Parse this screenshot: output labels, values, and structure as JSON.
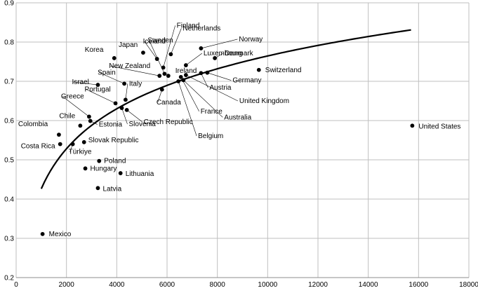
{
  "chart_data": {
    "type": "scatter",
    "title": "",
    "xlabel": "",
    "ylabel": "",
    "xlim": [
      0,
      18000
    ],
    "ylim": [
      0.2,
      0.9
    ],
    "x_ticks": [
      0,
      2000,
      4000,
      6000,
      8000,
      10000,
      12000,
      14000,
      16000,
      18000
    ],
    "y_ticks": [
      0.2,
      0.3,
      0.4,
      0.5,
      0.6,
      0.7,
      0.8,
      0.9
    ],
    "x_tick_labels": [
      "0",
      "2000",
      "4000",
      "6000",
      "8000",
      "10000",
      "12000",
      "14000",
      "16000",
      "18000"
    ],
    "y_tick_labels": [
      "0.2",
      "0.3",
      "0.4",
      "0.5",
      "0.6",
      "0.7",
      "0.8",
      "0.9"
    ],
    "grid": true,
    "legend": "none",
    "trendline": {
      "type": "logarithmic",
      "x_range": [
        1000,
        15700
      ]
    },
    "points": [
      {
        "label": "Mexico",
        "x": 1050,
        "y": 0.311
      },
      {
        "label": "Colombia",
        "x": 1700,
        "y": 0.564
      },
      {
        "label": "Costa Rica",
        "x": 1750,
        "y": 0.54
      },
      {
        "label": "Türkiye",
        "x": 2250,
        "y": 0.54
      },
      {
        "label": "Slovak Republic",
        "x": 2700,
        "y": 0.545
      },
      {
        "label": "Chile",
        "x": 2550,
        "y": 0.587
      },
      {
        "label": "Estonia",
        "x": 2950,
        "y": 0.599
      },
      {
        "label": "Hungary",
        "x": 2750,
        "y": 0.478
      },
      {
        "label": "Poland",
        "x": 3300,
        "y": 0.497
      },
      {
        "label": "Lithuania",
        "x": 4150,
        "y": 0.466
      },
      {
        "label": "Latvia",
        "x": 3250,
        "y": 0.428
      },
      {
        "label": "Greece",
        "x": 2900,
        "y": 0.61
      },
      {
        "label": "Israel",
        "x": 3250,
        "y": 0.691
      },
      {
        "label": "Korea",
        "x": 3900,
        "y": 0.759
      },
      {
        "label": "Spain",
        "x": 4300,
        "y": 0.694
      },
      {
        "label": "Portugal",
        "x": 3950,
        "y": 0.644
      },
      {
        "label": "Italy",
        "x": 4350,
        "y": 0.653
      },
      {
        "label": "Slovenia",
        "x": 4200,
        "y": 0.632
      },
      {
        "label": "Czech Republic",
        "x": 4400,
        "y": 0.627
      },
      {
        "label": "Japan",
        "x": 5050,
        "y": 0.773
      },
      {
        "label": "Iceland",
        "x": 5600,
        "y": 0.757
      },
      {
        "label": "New Zealand",
        "x": 5700,
        "y": 0.714
      },
      {
        "label": "Canada",
        "x": 5800,
        "y": 0.679
      },
      {
        "label": "Finland",
        "x": 5850,
        "y": 0.735
      },
      {
        "label": "Sweden",
        "x": 5900,
        "y": 0.719
      },
      {
        "label": "Ireland",
        "x": 6050,
        "y": 0.714
      },
      {
        "label": "Netherlands",
        "x": 6150,
        "y": 0.769
      },
      {
        "label": "Belgium",
        "x": 6450,
        "y": 0.7
      },
      {
        "label": "France",
        "x": 6550,
        "y": 0.711
      },
      {
        "label": "Australia",
        "x": 6650,
        "y": 0.703
      },
      {
        "label": "United Kingdom",
        "x": 6750,
        "y": 0.716
      },
      {
        "label": "Luxembourg",
        "x": 6750,
        "y": 0.741
      },
      {
        "label": "Austria",
        "x": 7350,
        "y": 0.721
      },
      {
        "label": "Germany",
        "x": 7600,
        "y": 0.722
      },
      {
        "label": "Norway",
        "x": 7350,
        "y": 0.784
      },
      {
        "label": "Denmark",
        "x": 7900,
        "y": 0.759
      },
      {
        "label": "Switzerland",
        "x": 9650,
        "y": 0.729
      },
      {
        "label": "United States",
        "x": 15750,
        "y": 0.587
      }
    ]
  }
}
